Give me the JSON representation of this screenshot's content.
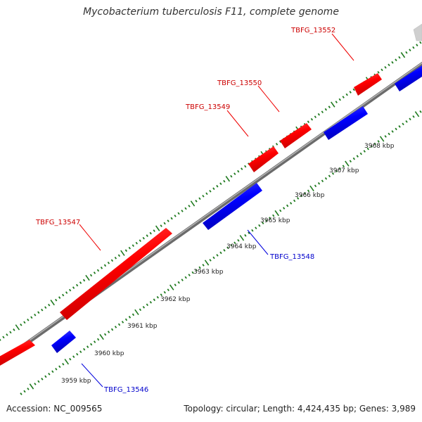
{
  "title": "Mycobacterium tuberculosis F11, complete genome",
  "footer": {
    "accession": "Accession: NC_009565",
    "info": "Topology: circular; Length: 4,424,435 bp; Genes: 3,989"
  },
  "colors": {
    "forward_gene": "#ff0000",
    "reverse_gene": "#0000ff",
    "backbone": "#888888",
    "tick": "#1f7a1f",
    "other_gene": "#d8d8d8"
  },
  "kbp_labels": [
    {
      "text": "3959 kbp"
    },
    {
      "text": "3960 kbp"
    },
    {
      "text": "3961 kbp"
    },
    {
      "text": "3962 kbp"
    },
    {
      "text": "3963 kbp"
    },
    {
      "text": "3964 kbp"
    },
    {
      "text": "3965 kbp"
    },
    {
      "text": "3966 kbp"
    },
    {
      "text": "3967 kbp"
    },
    {
      "text": "3968 kbp"
    }
  ],
  "genes": [
    {
      "id": "TBFG_13546",
      "strand": "reverse",
      "label": "TBFG_13546"
    },
    {
      "id": "TBFG_13547",
      "strand": "forward",
      "label": "TBFG_13547"
    },
    {
      "id": "TBFG_13548",
      "strand": "reverse",
      "label": "TBFG_13548"
    },
    {
      "id": "TBFG_13549",
      "strand": "forward",
      "label": "TBFG_13549"
    },
    {
      "id": "TBFG_13550",
      "strand": "forward",
      "label": "TBFG_13550"
    },
    {
      "id": "TBFG_13552",
      "strand": "forward",
      "label": "TBFG_13552"
    }
  ]
}
